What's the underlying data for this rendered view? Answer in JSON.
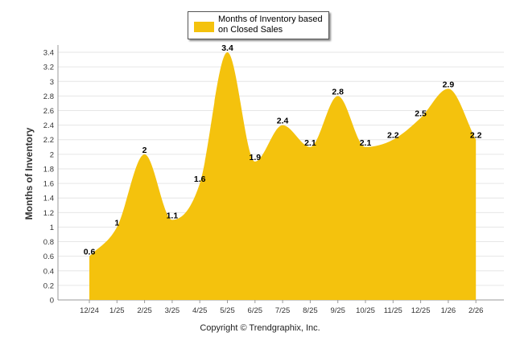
{
  "chart_data": {
    "type": "area",
    "title": "",
    "xlabel": "",
    "ylabel": "Months of Inventory",
    "ylim": [
      0,
      3.5
    ],
    "yticks": [
      "0",
      "0.2",
      "0.4",
      "0.6",
      "0.8",
      "1",
      "1.2",
      "1.4",
      "1.6",
      "1.8",
      "2",
      "2.2",
      "2.4",
      "2.6",
      "2.8",
      "3",
      "3.2",
      "3.4"
    ],
    "categories": [
      "12/24",
      "1/25",
      "2/25",
      "3/25",
      "4/25",
      "5/25",
      "6/25",
      "7/25",
      "8/25",
      "9/25",
      "10/25",
      "11/25",
      "12/25",
      "1/26",
      "2/26"
    ],
    "series": [
      {
        "name": "Months of Inventory based on Closed Sales",
        "values": [
          0.6,
          1,
          2,
          1.1,
          1.6,
          3.4,
          1.9,
          2.4,
          2.1,
          2.8,
          2.1,
          2.2,
          2.5,
          2.9,
          2.2
        ],
        "labels": [
          "0.6",
          "1",
          "2",
          "1.1",
          "1.6",
          "3.4",
          "1.9",
          "2.4",
          "2.1",
          "2.8",
          "2.1",
          "2.2",
          "2.5",
          "2.9",
          "2.2"
        ],
        "color": "#F4C20D"
      }
    ],
    "legend": {
      "position": "top-center",
      "label": "Months of Inventory based on Closed Sales"
    },
    "grid": true
  },
  "footer": {
    "copyright": "Copyright © Trendgraphix, Inc."
  },
  "colors": {
    "fill": "#F4C20D",
    "grid": "#e6e6e6",
    "axis": "#999999"
  }
}
